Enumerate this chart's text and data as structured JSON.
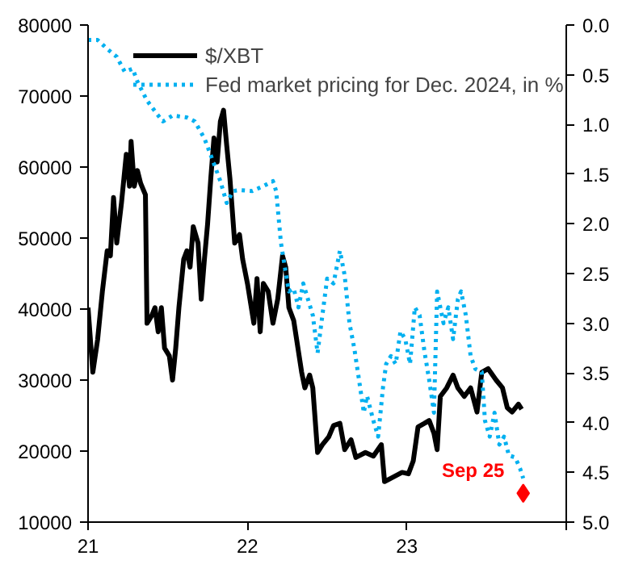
{
  "chart_data": {
    "type": "line",
    "xlim": [
      2021,
      2024
    ],
    "xticks": [
      {
        "value": 2021,
        "label": "21"
      },
      {
        "value": 2022,
        "label": "22"
      },
      {
        "value": 2023,
        "label": "23"
      },
      {
        "value": 2024,
        "label": null
      }
    ],
    "ylim": [
      10000,
      80000
    ],
    "yticks": [
      10000,
      20000,
      30000,
      40000,
      50000,
      60000,
      70000,
      80000
    ],
    "y2lim": [
      5.0,
      0.0
    ],
    "y2ticks": [
      {
        "value": 0,
        "label": "0.0"
      },
      {
        "value": 0.5,
        "label": "0.5"
      },
      {
        "value": 1,
        "label": "1.0"
      },
      {
        "value": 1.5,
        "label": "1.5"
      },
      {
        "value": 2,
        "label": "2.0"
      },
      {
        "value": 2.5,
        "label": "2.5"
      },
      {
        "value": 3,
        "label": "3.0"
      },
      {
        "value": 3.5,
        "label": "3.5"
      },
      {
        "value": 4,
        "label": "4.0"
      },
      {
        "value": 4.5,
        "label": "4.5"
      },
      {
        "value": 5,
        "label": "5.0"
      }
    ],
    "grid": false,
    "legend": "top",
    "series": [
      {
        "name": "$/XBT",
        "color": "#000000",
        "line_style": "solid",
        "x": [
          2021.0,
          2021.03,
          2021.06,
          2021.09,
          2021.12,
          2021.14,
          2021.16,
          2021.18,
          2021.21,
          2021.24,
          2021.26,
          2021.27,
          2021.29,
          2021.31,
          2021.33,
          2021.36,
          2021.37,
          2021.4,
          2021.42,
          2021.44,
          2021.46,
          2021.48,
          2021.51,
          2021.53,
          2021.55,
          2021.57,
          2021.6,
          2021.62,
          2021.64,
          2021.66,
          2021.69,
          2021.71,
          2021.73,
          2021.75,
          2021.77,
          2021.79,
          2021.81,
          2021.83,
          2021.85,
          2021.87,
          2021.89,
          2021.92,
          2021.95,
          2021.97,
          2022.0,
          2022.04,
          2022.06,
          2022.08,
          2022.1,
          2022.13,
          2022.16,
          2022.19,
          2022.22,
          2022.24,
          2022.26,
          2022.29,
          2022.34,
          2022.36,
          2022.39,
          2022.41,
          2022.44,
          2022.47,
          2022.51,
          2022.54,
          2022.58,
          2022.61,
          2022.65,
          2022.68,
          2022.74,
          2022.79,
          2022.84,
          2022.86,
          2022.92,
          2022.97,
          2023.01,
          2023.04,
          2023.07,
          2023.11,
          2023.14,
          2023.17,
          2023.19,
          2023.21,
          2023.25,
          2023.29,
          2023.32,
          2023.36,
          2023.4,
          2023.44,
          2023.47,
          2023.51,
          2023.56,
          2023.6,
          2023.63,
          2023.66,
          2023.7,
          2023.72
        ],
        "values": [
          40200,
          31100,
          35700,
          42500,
          48200,
          47500,
          55700,
          49300,
          55000,
          61800,
          57300,
          63600,
          57300,
          59500,
          57700,
          56100,
          38000,
          39100,
          40200,
          36800,
          40200,
          34500,
          33400,
          30000,
          34500,
          40200,
          47000,
          48200,
          45900,
          51600,
          49300,
          41400,
          47000,
          52000,
          58400,
          64100,
          60700,
          66400,
          68000,
          63000,
          58400,
          49300,
          50500,
          47000,
          43600,
          38000,
          44300,
          36800,
          43600,
          42500,
          38000,
          41400,
          47500,
          45900,
          40200,
          38400,
          31100,
          28900,
          30700,
          28900,
          19800,
          20900,
          22000,
          23600,
          23900,
          20200,
          21600,
          19100,
          19800,
          19300,
          20900,
          15700,
          16400,
          17000,
          16800,
          18600,
          23400,
          23900,
          24300,
          22500,
          20200,
          27700,
          28900,
          30700,
          28900,
          27700,
          28900,
          25500,
          31100,
          31600,
          30000,
          28900,
          26100,
          25500,
          26600,
          25900
        ]
      },
      {
        "name": "Fed market pricing for Dec. 2024, in %",
        "color": "#00b0f0",
        "line_style": "dotted",
        "axis": "y2",
        "x": [
          2021.0,
          2021.06,
          2021.12,
          2021.18,
          2021.23,
          2021.28,
          2021.31,
          2021.37,
          2021.43,
          2021.47,
          2021.53,
          2021.62,
          2021.67,
          2021.73,
          2021.77,
          2021.83,
          2021.87,
          2021.91,
          2021.95,
          2022.03,
          2022.1,
          2022.16,
          2022.18,
          2022.21,
          2022.23,
          2022.26,
          2022.29,
          2022.32,
          2022.35,
          2022.38,
          2022.41,
          2022.44,
          2022.47,
          2022.5,
          2022.54,
          2022.58,
          2022.61,
          2022.64,
          2022.67,
          2022.7,
          2022.73,
          2022.75,
          2022.79,
          2022.82,
          2022.85,
          2022.87,
          2022.9,
          2022.93,
          2022.96,
          2022.99,
          2023.02,
          2023.05,
          2023.08,
          2023.11,
          2023.14,
          2023.17,
          2023.19,
          2023.23,
          2023.26,
          2023.29,
          2023.32,
          2023.34,
          2023.37,
          2023.4,
          2023.43,
          2023.47,
          2023.49,
          2023.52,
          2023.55,
          2023.58,
          2023.61,
          2023.64,
          2023.68,
          2023.71,
          2023.73
        ],
        "values": [
          0.15,
          0.15,
          0.24,
          0.32,
          0.47,
          0.44,
          0.57,
          0.76,
          0.89,
          0.97,
          0.91,
          0.93,
          0.97,
          1.14,
          1.31,
          1.57,
          1.79,
          1.67,
          1.66,
          1.67,
          1.62,
          1.57,
          1.67,
          2.19,
          2.39,
          2.68,
          2.65,
          2.84,
          2.6,
          2.76,
          2.92,
          3.3,
          2.92,
          2.55,
          2.6,
          2.27,
          2.52,
          3.0,
          3.25,
          3.57,
          3.9,
          3.73,
          3.98,
          4.14,
          3.65,
          3.41,
          3.33,
          3.41,
          3.08,
          3.16,
          3.41,
          2.84,
          2.92,
          3.28,
          3.57,
          3.9,
          2.68,
          3.0,
          2.84,
          3.16,
          2.76,
          2.68,
          2.92,
          3.33,
          3.46,
          3.49,
          3.98,
          4.14,
          3.9,
          4.22,
          4.14,
          4.33,
          4.35,
          4.46,
          4.56
        ]
      },
      {
        "type": "scatter",
        "marker": "diamond",
        "color": "#ff0000",
        "axis": "y2",
        "x": [
          2023.73
        ],
        "values": [
          4.71
        ]
      }
    ],
    "annotations": [
      "Sep 25"
    ]
  }
}
